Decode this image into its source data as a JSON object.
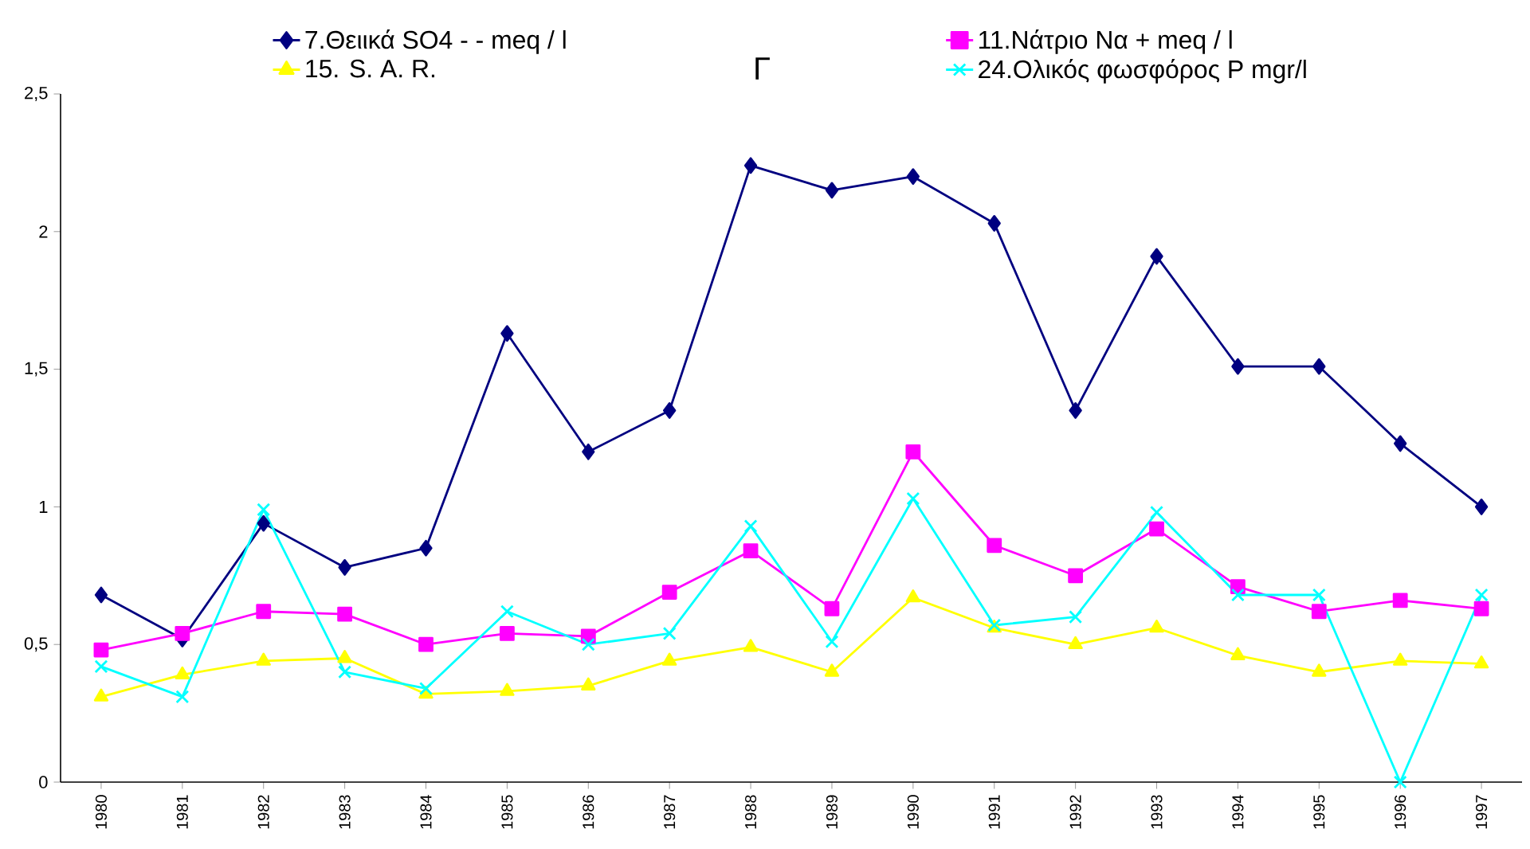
{
  "chart_data": {
    "type": "line",
    "title": "Γ",
    "categories": [
      "1980",
      "1981",
      "1982",
      "1983",
      "1984",
      "1985",
      "1986",
      "1987",
      "1988",
      "1989",
      "1990",
      "1991",
      "1992",
      "1993",
      "1994",
      "1995",
      "1996",
      "1997"
    ],
    "series": [
      {
        "name": "7.Θειικά SO4 - - meq / l",
        "color": "#000080",
        "marker": "diamond",
        "values": [
          0.68,
          0.52,
          0.94,
          0.78,
          0.85,
          1.63,
          1.2,
          1.35,
          2.24,
          2.15,
          2.2,
          2.03,
          1.35,
          1.91,
          1.51,
          1.51,
          1.23,
          1.0
        ]
      },
      {
        "name": "11.Νάτριο Να + meq / l",
        "color": "#ff00ff",
        "marker": "square",
        "values": [
          0.48,
          0.54,
          0.62,
          0.61,
          0.5,
          0.54,
          0.53,
          0.69,
          0.84,
          0.63,
          1.2,
          0.86,
          0.75,
          0.92,
          0.71,
          0.62,
          0.66,
          0.63
        ]
      },
      {
        "name": "15. S. A. R.",
        "color": "#ffff00",
        "marker": "triangle",
        "values": [
          0.31,
          0.39,
          0.44,
          0.45,
          0.32,
          0.33,
          0.35,
          0.44,
          0.49,
          0.4,
          0.67,
          0.56,
          0.5,
          0.56,
          0.46,
          0.4,
          0.44,
          0.43
        ]
      },
      {
        "name": "24.Ολικός φωσφόρος P mgr/l",
        "color": "#00ffff",
        "marker": "cross",
        "values": [
          0.42,
          0.31,
          0.99,
          0.4,
          0.34,
          0.62,
          0.5,
          0.54,
          0.93,
          0.51,
          1.03,
          0.57,
          0.6,
          0.98,
          0.68,
          0.68,
          0,
          0.68
        ]
      }
    ],
    "ylim": [
      0,
      2.5
    ],
    "yticks": [
      0,
      {
        "value": 0.5,
        "label": "0,5"
      },
      1,
      {
        "value": 1.5,
        "label": "1,5"
      },
      2,
      {
        "value": 2.5,
        "label": "2,5"
      }
    ],
    "legend": "top",
    "line_style": "solid"
  }
}
